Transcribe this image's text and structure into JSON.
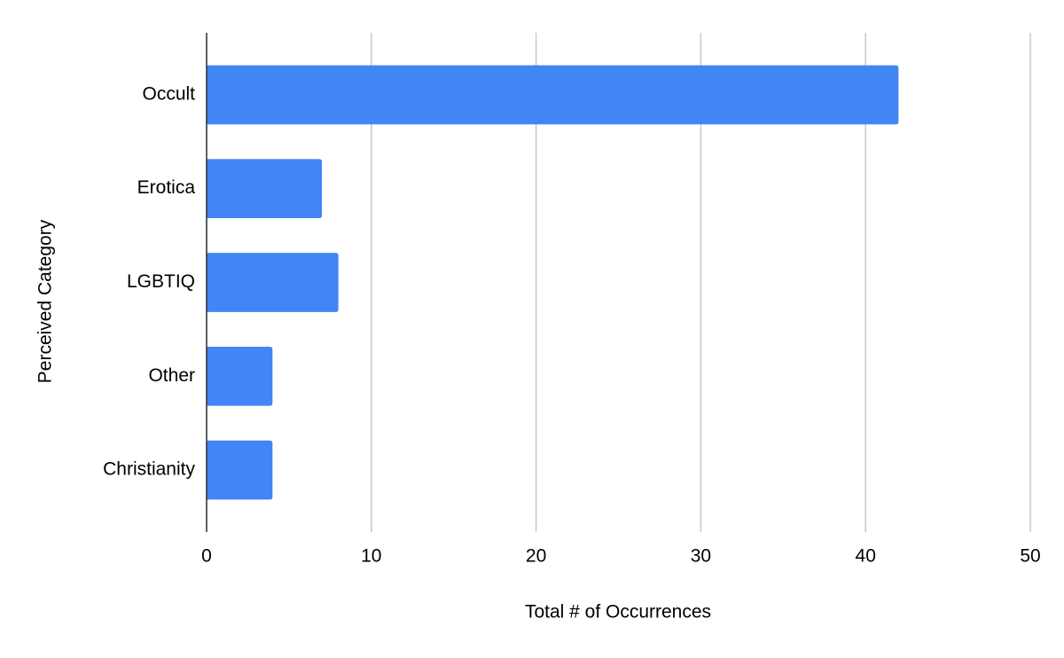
{
  "chart_data": {
    "type": "bar",
    "orientation": "horizontal",
    "x_label": "Total # of Occurrences",
    "y_label": "Perceived Category",
    "categories": [
      "Occult",
      "Erotica",
      "LGBTIQ",
      "Other",
      "Christianity"
    ],
    "values": [
      42,
      7,
      8,
      4,
      4
    ],
    "color": "#4285f4",
    "xlim": [
      0,
      50
    ],
    "xticks": [
      0,
      10,
      20,
      30,
      40,
      50
    ],
    "grid": true
  }
}
